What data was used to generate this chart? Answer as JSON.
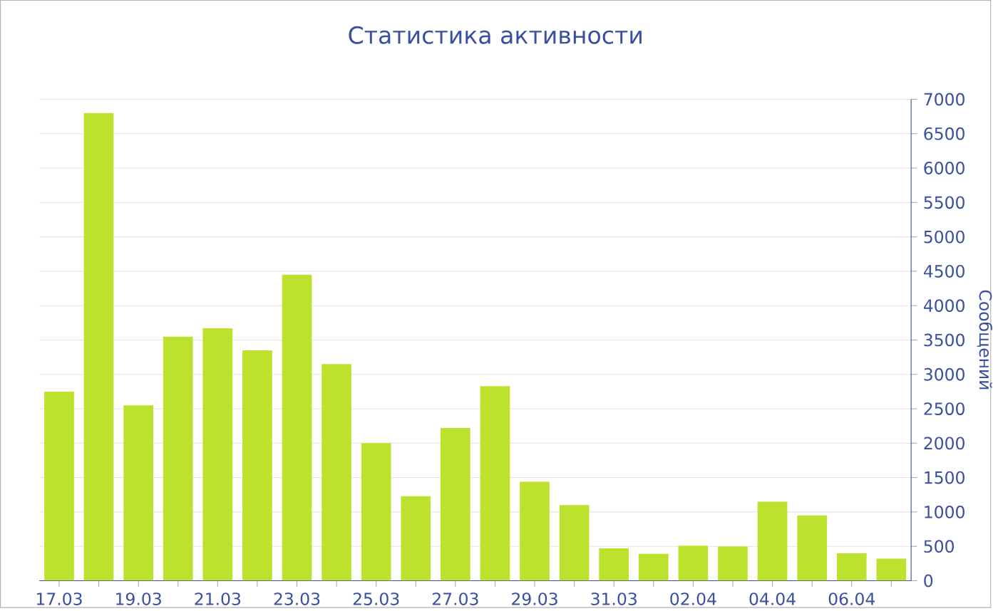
{
  "chart_data": {
    "type": "bar",
    "title": "Статистика активности",
    "ylabel": "Сообщений",
    "categories": [
      "17.03",
      null,
      "19.03",
      null,
      "21.03",
      null,
      "23.03",
      null,
      "25.03",
      null,
      "27.03",
      null,
      "29.03",
      null,
      "31.03",
      null,
      "02.04",
      null,
      "04.04",
      null,
      "06.04",
      null
    ],
    "values": [
      2750,
      6800,
      2550,
      3550,
      3670,
      3350,
      4450,
      3150,
      2000,
      1230,
      2220,
      2830,
      1440,
      1100,
      470,
      390,
      510,
      500,
      1150,
      950,
      400,
      320
    ],
    "color": "#bce22e",
    "ylim": [
      0,
      7000
    ],
    "yticks": [
      0,
      500,
      1000,
      1500,
      2000,
      2500,
      3000,
      3500,
      4000,
      4500,
      5000,
      5500,
      6000,
      6500,
      7000
    ],
    "grid": "y"
  }
}
